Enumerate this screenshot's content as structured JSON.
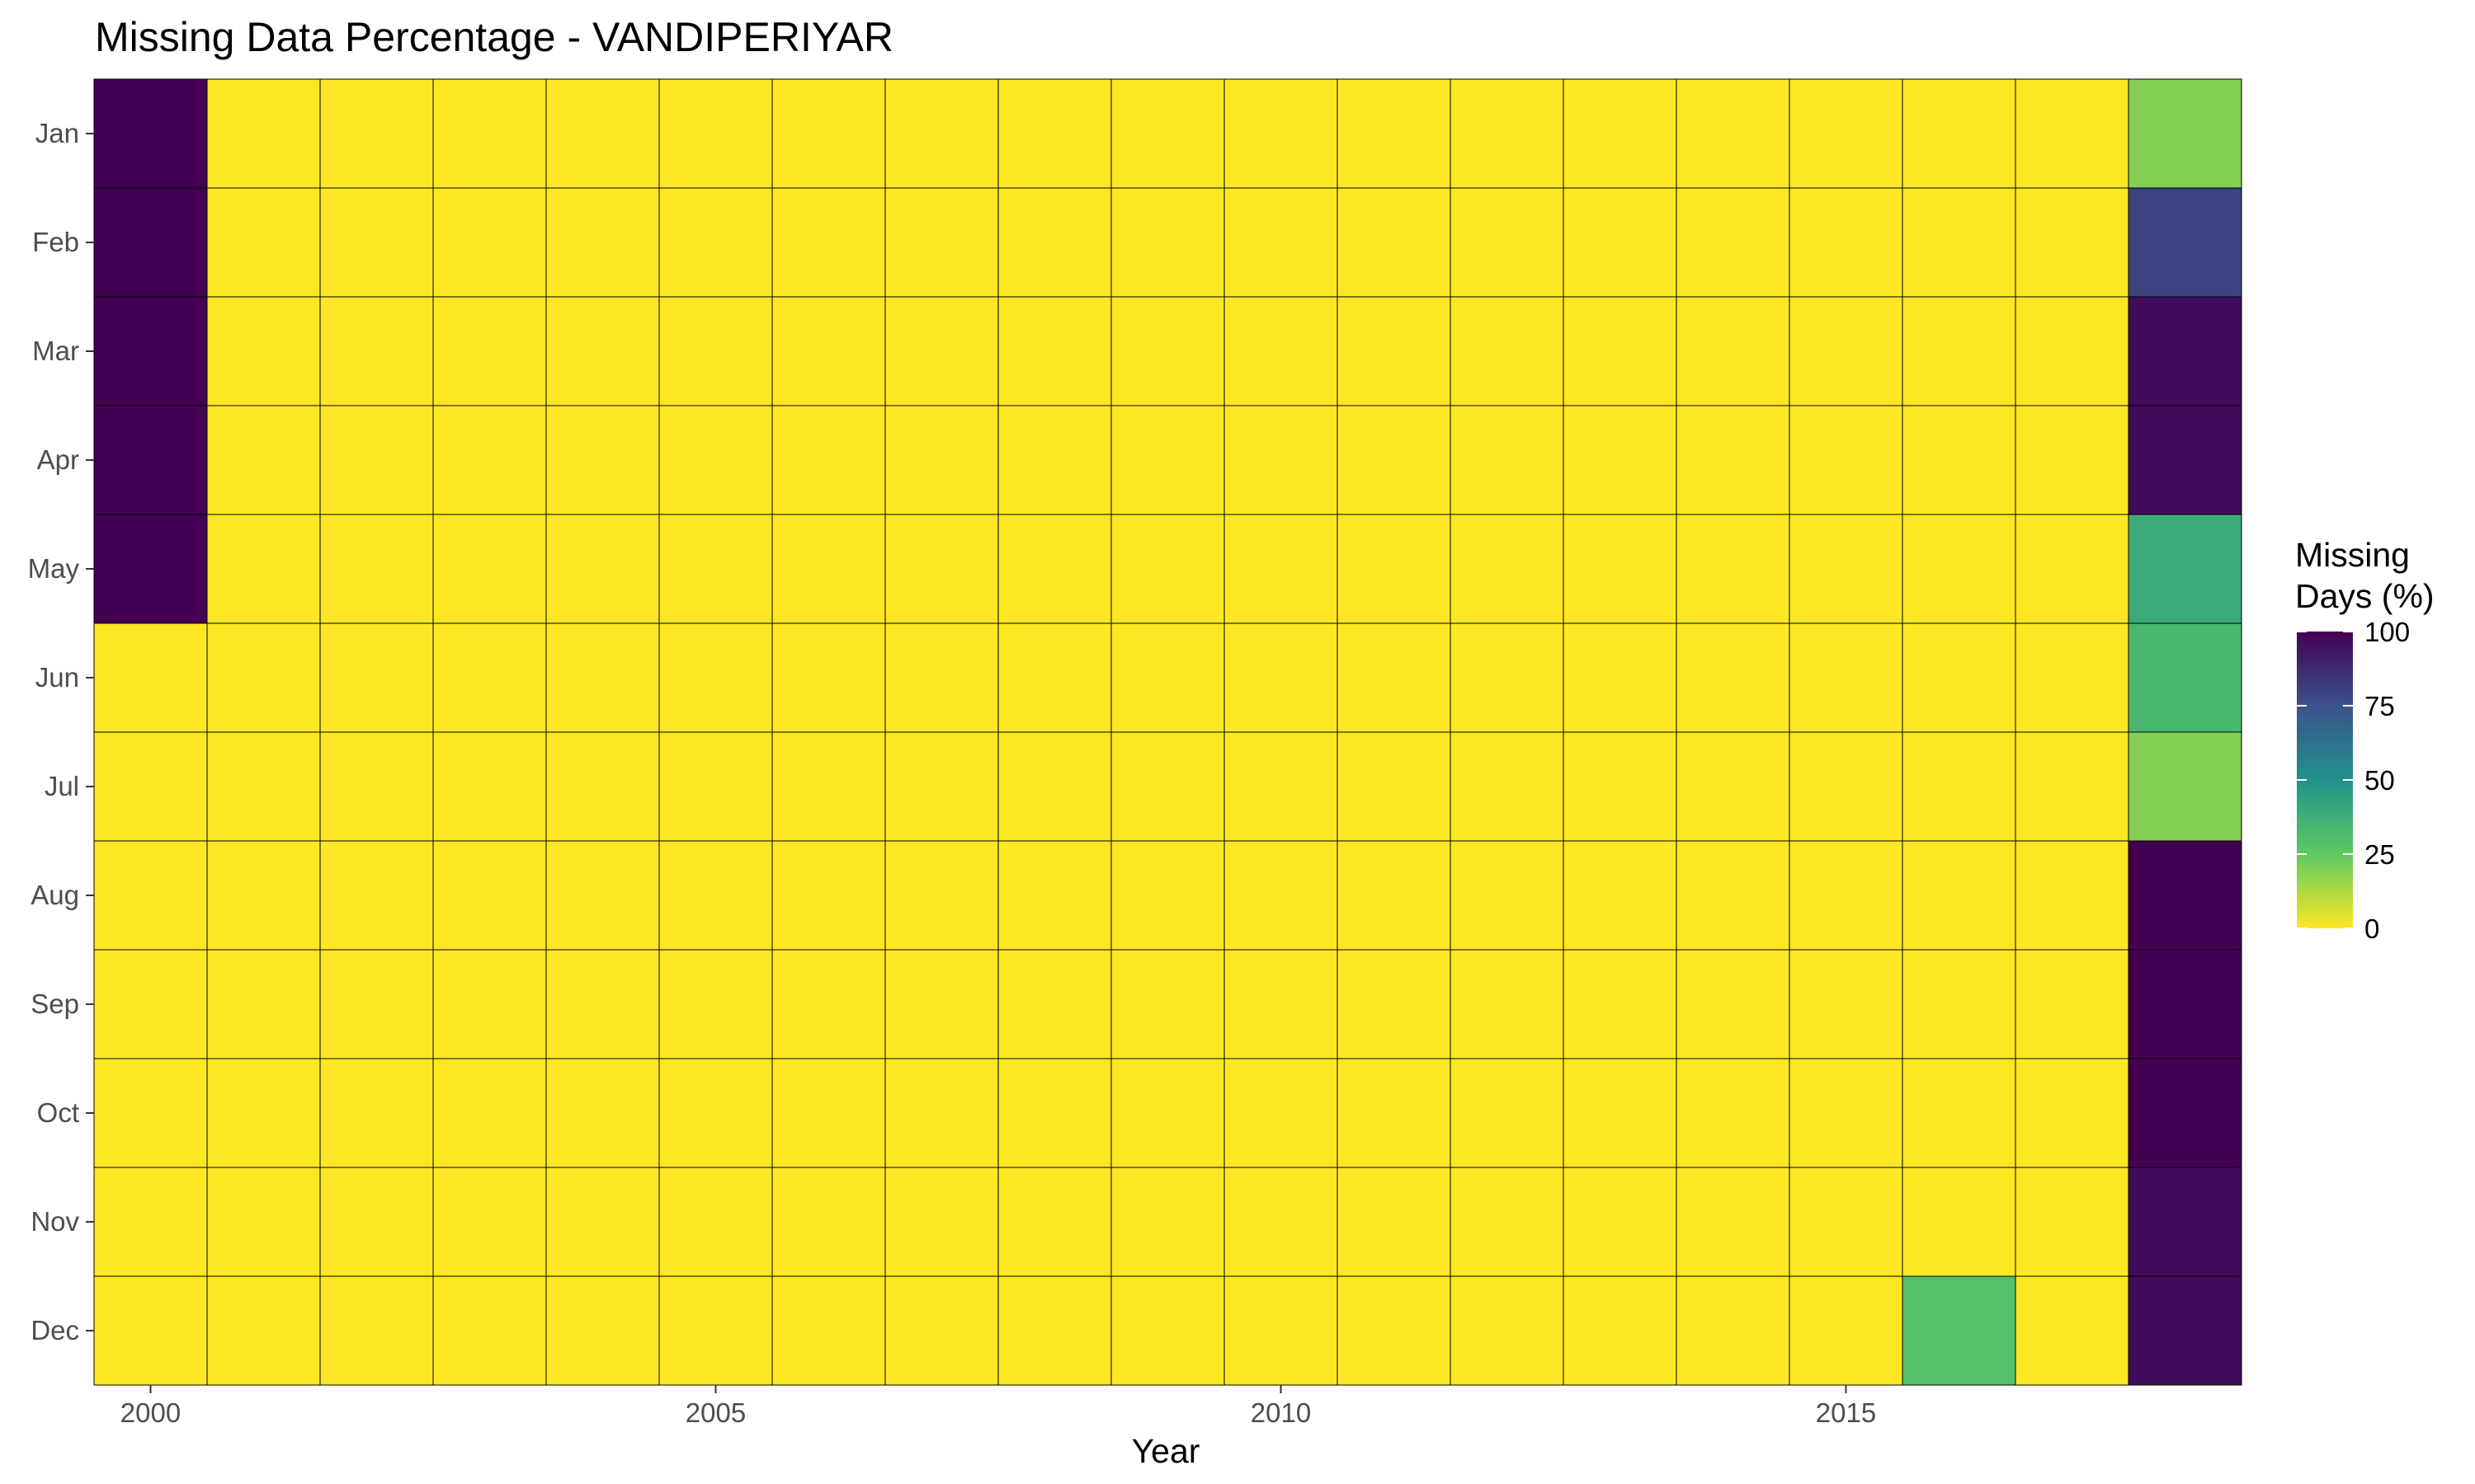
{
  "chart_data": {
    "type": "heatmap",
    "title": "Missing Data Percentage - VANDIPERIYAR",
    "xlabel": "Year",
    "ylabel": "",
    "x": [
      2000,
      2001,
      2002,
      2003,
      2004,
      2005,
      2006,
      2007,
      2008,
      2009,
      2010,
      2011,
      2012,
      2013,
      2014,
      2015,
      2016,
      2017,
      2018
    ],
    "x_ticks": [
      2000,
      2005,
      2010,
      2015
    ],
    "y": [
      "Jan",
      "Feb",
      "Mar",
      "Apr",
      "May",
      "Jun",
      "Jul",
      "Aug",
      "Sep",
      "Oct",
      "Nov",
      "Dec"
    ],
    "cells": [
      {
        "month": "Jan",
        "year": 2000,
        "value": 100
      },
      {
        "month": "Feb",
        "year": 2000,
        "value": 100
      },
      {
        "month": "Mar",
        "year": 2000,
        "value": 100
      },
      {
        "month": "Apr",
        "year": 2000,
        "value": 100
      },
      {
        "month": "May",
        "year": 2000,
        "value": 100
      },
      {
        "month": "Dec",
        "year": 2016,
        "value": 29
      },
      {
        "month": "Jan",
        "year": 2018,
        "value": 19
      },
      {
        "month": "Feb",
        "year": 2018,
        "value": 79
      },
      {
        "month": "Mar",
        "year": 2018,
        "value": 97
      },
      {
        "month": "Apr",
        "year": 2018,
        "value": 97
      },
      {
        "month": "May",
        "year": 2018,
        "value": 39
      },
      {
        "month": "Jun",
        "year": 2018,
        "value": 33
      },
      {
        "month": "Jul",
        "year": 2018,
        "value": 19
      },
      {
        "month": "Aug",
        "year": 2018,
        "value": 100
      },
      {
        "month": "Sep",
        "year": 2018,
        "value": 100
      },
      {
        "month": "Oct",
        "year": 2018,
        "value": 100
      },
      {
        "month": "Nov",
        "year": 2018,
        "value": 97
      },
      {
        "month": "Dec",
        "year": 2018,
        "value": 97
      }
    ],
    "default_value": 0,
    "color_scale": {
      "name": "viridis (reversed)",
      "range": [
        0,
        100
      ],
      "stops": [
        {
          "value": 0,
          "color": "#fde725"
        },
        {
          "value": 25,
          "color": "#5ec962"
        },
        {
          "value": 50,
          "color": "#21918c"
        },
        {
          "value": 75,
          "color": "#3b528b"
        },
        {
          "value": 100,
          "color": "#440154"
        }
      ]
    },
    "legend": {
      "title_lines": [
        "Missing",
        "Days (%)"
      ],
      "ticks": [
        100,
        75,
        50,
        25,
        0
      ],
      "position": "right"
    },
    "grid": false
  }
}
